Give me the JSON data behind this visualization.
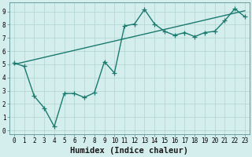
{
  "xlabel": "Humidex (Indice chaleur)",
  "background_color": "#d4eeed",
  "line_color": "#1a7a6e",
  "grid_color": "#b0d4d0",
  "xlim": [
    -0.5,
    23.5
  ],
  "ylim": [
    -0.3,
    9.7
  ],
  "xticks": [
    0,
    1,
    2,
    3,
    4,
    5,
    6,
    7,
    8,
    9,
    10,
    11,
    12,
    13,
    14,
    15,
    16,
    17,
    18,
    19,
    20,
    21,
    22,
    23
  ],
  "yticks": [
    0,
    1,
    2,
    3,
    4,
    5,
    6,
    7,
    8,
    9
  ],
  "line1_x": [
    0,
    1,
    2,
    3,
    4,
    5,
    6,
    7,
    8,
    9,
    10,
    11,
    12,
    13,
    14,
    15,
    16,
    17,
    18,
    19,
    20,
    21,
    22,
    23
  ],
  "line1_y": [
    5.1,
    4.85,
    2.6,
    1.7,
    0.3,
    2.8,
    2.8,
    2.5,
    2.85,
    5.2,
    4.35,
    7.9,
    8.05,
    9.15,
    8.05,
    7.5,
    7.2,
    7.4,
    7.1,
    7.4,
    7.5,
    8.3,
    9.2,
    8.6
  ],
  "line2_x": [
    0,
    23
  ],
  "line2_y": [
    5.0,
    9.05
  ],
  "marker_size": 3,
  "linewidth": 1.0,
  "tick_fontsize": 5.5,
  "xlabel_fontsize": 7.5
}
